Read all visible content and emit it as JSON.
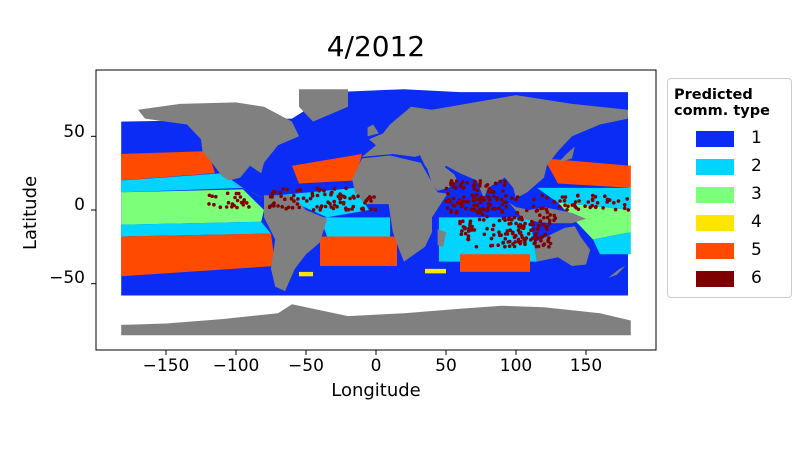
{
  "title": "4/2012",
  "xlabel": "Longitude",
  "ylabel": "Latitude",
  "x_ticks": [
    "−150",
    "−100",
    "−50",
    "0",
    "50",
    "100",
    "150"
  ],
  "x_tick_values": [
    -150,
    -100,
    -50,
    0,
    50,
    100,
    150
  ],
  "y_ticks": [
    "50",
    "0",
    "−50"
  ],
  "y_tick_values": [
    50,
    0,
    -50
  ],
  "legend": {
    "title_line1": "Predicted",
    "title_line2": "comm. type",
    "placement": "right",
    "entries": [
      {
        "label": "1",
        "color": "#0a2cf5"
      },
      {
        "label": "2",
        "color": "#00d4ff"
      },
      {
        "label": "3",
        "color": "#7cff79"
      },
      {
        "label": "4",
        "color": "#ffe600"
      },
      {
        "label": "5",
        "color": "#ff4a00"
      },
      {
        "label": "6",
        "color": "#7f0000"
      }
    ]
  },
  "map": {
    "land_color": "#808080",
    "xlim": [
      -200,
      200
    ],
    "ylim": [
      -95,
      95
    ]
  }
}
